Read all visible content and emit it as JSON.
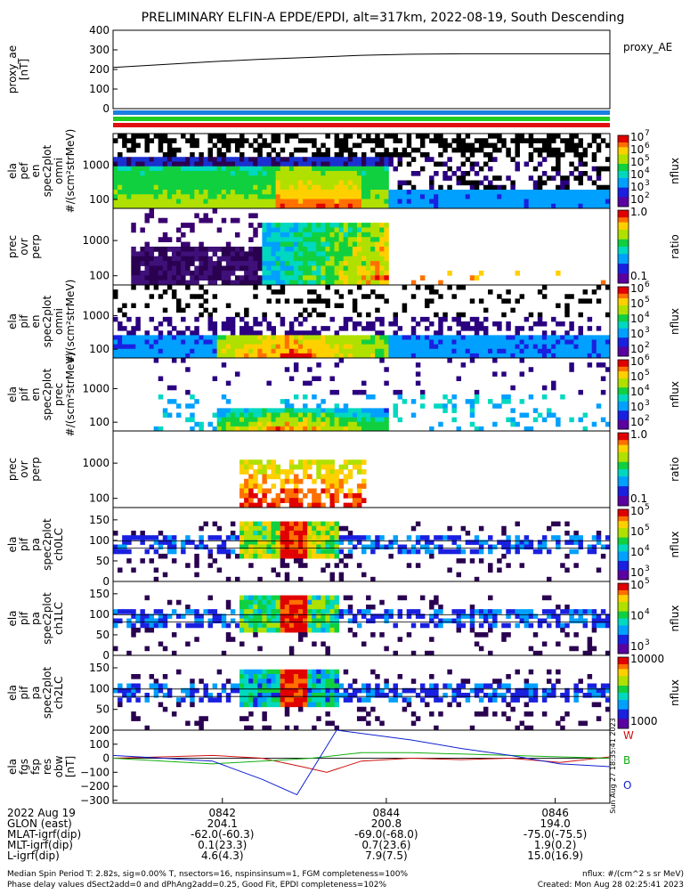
{
  "title": "PRELIMINARY ELFIN-A EPDE/EPDI, alt=317km, 2022-08-19, South Descending",
  "colors": {
    "bar_blue": "#1a7fe0",
    "bar_green": "#22cc22",
    "bar_red": "#e01010",
    "line_red": "#d01010",
    "line_green": "#10b010",
    "line_blue": "#1020d0"
  },
  "chart_data": [
    {
      "type": "line",
      "panel": "proxy_ae",
      "ylabel": [
        "proxy_ae",
        "[nT]"
      ],
      "ylim": [
        0,
        400
      ],
      "yticks": [
        "400",
        "300",
        "200",
        "100",
        "0"
      ],
      "series": [
        {
          "name": "proxy_AE",
          "x": [
            0.0,
            0.1,
            0.2,
            0.3,
            0.4,
            0.5,
            0.6,
            0.7,
            1.0
          ],
          "values": [
            210,
            225,
            240,
            252,
            262,
            272,
            278,
            280,
            280
          ]
        }
      ],
      "label": "proxy_AE"
    },
    {
      "type": "heatmap",
      "panel": "ela_pef_en_spec2plot_omni",
      "ylabel": [
        "ela",
        "pef",
        "en",
        "spec2plot",
        "omni",
        "#/(scm²strMeV)"
      ],
      "scale": "log",
      "yticks": [
        "1000",
        "100"
      ],
      "zlabel": "nflux",
      "zticks": [
        "10",
        "10",
        "10",
        "10",
        "10",
        "10"
      ],
      "zticks_exp": [
        "7",
        "6",
        "5",
        "4",
        "3",
        "2"
      ]
    },
    {
      "type": "heatmap",
      "panel": "prec_ovr_perp_e",
      "ylabel": [
        "prec",
        "ovr",
        "perp"
      ],
      "scale": "log",
      "yticks": [
        "1000",
        "100"
      ],
      "zlabel": "ratio",
      "zticks": [
        "1.0",
        "0.1"
      ]
    },
    {
      "type": "heatmap",
      "panel": "ela_pif_en_spec2plot_omni",
      "ylabel": [
        "ela",
        "pif",
        "en",
        "spec2plot",
        "omni",
        "#/(scm²strMeV)"
      ],
      "scale": "log",
      "yticks": [
        "1000",
        "100"
      ],
      "zlabel": "nflux",
      "zticks": [
        "10",
        "10",
        "10",
        "10",
        "10"
      ],
      "zticks_exp": [
        "6",
        "5",
        "4",
        "3",
        "2"
      ]
    },
    {
      "type": "heatmap",
      "panel": "ela_pif_en_spec2plot_prec",
      "ylabel": [
        "ela",
        "pif",
        "en",
        "spec2plot",
        "prec",
        "#/(scm²strMeV)"
      ],
      "scale": "log",
      "yticks": [
        "1000",
        "100"
      ],
      "zlabel": "nflux",
      "zticks": [
        "10",
        "10",
        "10",
        "10",
        "10"
      ],
      "zticks_exp": [
        "6",
        "5",
        "4",
        "3",
        "2"
      ]
    },
    {
      "type": "heatmap",
      "panel": "prec_ovr_perp_i",
      "ylabel": [
        "prec",
        "ovr",
        "perp"
      ],
      "scale": "log",
      "yticks": [
        "1000",
        "100"
      ],
      "zlabel": "ratio",
      "zticks": [
        "1.0",
        "0.1"
      ]
    },
    {
      "type": "heatmap",
      "panel": "ela_pif_pa_spec2plot_ch0LC",
      "ylabel": [
        "ela",
        "pif",
        "pa",
        "spec2plot",
        "ch0LC"
      ],
      "ylim": [
        0,
        180
      ],
      "yticks": [
        "150",
        "100",
        "50",
        "0"
      ],
      "zlabel": "nflux",
      "zticks": [
        "10",
        "10",
        "10",
        "10"
      ],
      "zticks_exp": [
        "5",
        "5",
        "4",
        "3"
      ]
    },
    {
      "type": "heatmap",
      "panel": "ela_pif_pa_spec2plot_ch1LC",
      "ylabel": [
        "ela",
        "pif",
        "pa",
        "spec2plot",
        "ch1LC"
      ],
      "ylim": [
        0,
        180
      ],
      "yticks": [
        "150",
        "100",
        "50",
        "0"
      ],
      "zlabel": "nflux",
      "zticks": [
        "10",
        "10",
        "10"
      ],
      "zticks_exp": [
        "5",
        "4",
        "3"
      ]
    },
    {
      "type": "heatmap",
      "panel": "ela_pif_pa_spec2plot_ch2LC",
      "ylabel": [
        "ela",
        "pif",
        "pa",
        "spec2plot",
        "ch2LC"
      ],
      "ylim": [
        0,
        180
      ],
      "yticks": [
        "150",
        "100",
        "50",
        "0"
      ],
      "zlabel": "nflux",
      "zticks": [
        "10000",
        "1000"
      ]
    },
    {
      "type": "line",
      "panel": "ela_fgs_fsp_res_obw",
      "ylabel": [
        "ela",
        "fgs",
        "fsp",
        "res",
        "obw",
        "[nT]"
      ],
      "ylim": [
        -320,
        200
      ],
      "yticks": [
        "200",
        "100",
        "0",
        "−100",
        "−200",
        "−300"
      ],
      "series": [
        {
          "name": "W",
          "x": [
            0.0,
            0.1,
            0.2,
            0.3,
            0.38,
            0.43,
            0.5,
            0.6,
            0.7,
            0.8,
            0.9,
            1.0
          ],
          "values": [
            0,
            10,
            20,
            0,
            -60,
            -100,
            -20,
            0,
            -10,
            0,
            -30,
            10
          ]
        },
        {
          "name": "B",
          "x": [
            0.0,
            0.1,
            0.2,
            0.3,
            0.4,
            0.5,
            0.6,
            0.7,
            0.8,
            0.9,
            1.0
          ],
          "values": [
            0,
            -20,
            -40,
            -20,
            0,
            40,
            40,
            30,
            20,
            10,
            0
          ]
        },
        {
          "name": "O",
          "x": [
            0.0,
            0.1,
            0.2,
            0.3,
            0.37,
            0.45,
            0.6,
            0.7,
            0.8,
            0.9,
            1.0
          ],
          "values": [
            20,
            0,
            -20,
            -150,
            -260,
            200,
            130,
            70,
            20,
            -40,
            -60
          ]
        }
      ]
    }
  ],
  "time_axis": {
    "ticks": [
      "0842",
      "0844",
      "0846"
    ],
    "rows": [
      {
        "label": "2022 Aug 19",
        "vals": [
          "",
          "",
          ""
        ]
      },
      {
        "label": "GLON (east)",
        "vals": [
          "204.1",
          "200.8",
          "194.0"
        ]
      },
      {
        "label": "MLAT-igrf(dip)",
        "vals": [
          "-62.0(-60.3)",
          "-69.0(-68.0)",
          "-75.0(-75.5)"
        ]
      },
      {
        "label": "MLT-igrf(dip)",
        "vals": [
          "0.1(23.3)",
          "0.7(23.6)",
          "1.9(0.2)"
        ]
      },
      {
        "label": "L-igrf(dip)",
        "vals": [
          "4.6(4.3)",
          "7.9(7.5)",
          "15.0(16.9)"
        ]
      }
    ]
  },
  "footer": {
    "line1_left": "Median Spin Period T: 2.82s, sig=0.00% T, nsectors=16, nspinsinsum=1, FGM completeness=100%",
    "line2_left": "Phase delay values dSect2add=0 and dPhAng2add=0.25, Good Fit, EPDI completeness=102%",
    "line1_right": "nflux: #/(cm^2 s sr MeV)",
    "line2_right": "Created: Mon Aug 28 02:25:41 2023",
    "vertical": "Sun Aug 27 18:35:41 2023"
  }
}
